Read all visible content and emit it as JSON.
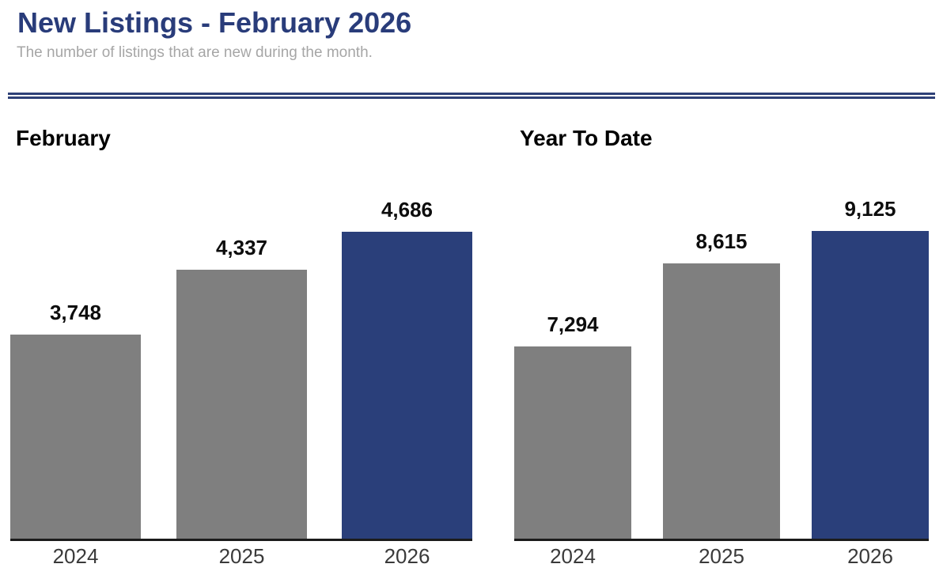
{
  "page": {
    "title": "New Listings - February 2026",
    "subtitle": "The number of listings that are new during the month.",
    "colors": {
      "title_text": "#293c7a",
      "subtitle_text": "#a6a6a6",
      "divider": "#2e4077",
      "bar_gray": "#7f7f7f",
      "bar_accent": "#2a3f7a",
      "axis_line": "#1b1b1b",
      "value_label_text": "#0d0d0d",
      "tick_label_text": "#3a3a3a"
    }
  },
  "chart_data": [
    {
      "type": "bar",
      "title": "February",
      "categories": [
        "2024",
        "2025",
        "2026"
      ],
      "values": [
        3748,
        4337,
        4686
      ],
      "value_labels": [
        "3,748",
        "4,337",
        "4,686"
      ],
      "highlight_index": 2,
      "ylim": [
        1887,
        4845
      ],
      "grid": false,
      "legend": false
    },
    {
      "type": "bar",
      "title": "Year To Date",
      "categories": [
        "2024",
        "2025",
        "2026"
      ],
      "values": [
        7294,
        8615,
        9125
      ],
      "value_labels": [
        "7,294",
        "8,615",
        "9,125"
      ],
      "highlight_index": 2,
      "ylim": [
        4247,
        9388
      ],
      "grid": false,
      "legend": false
    }
  ]
}
